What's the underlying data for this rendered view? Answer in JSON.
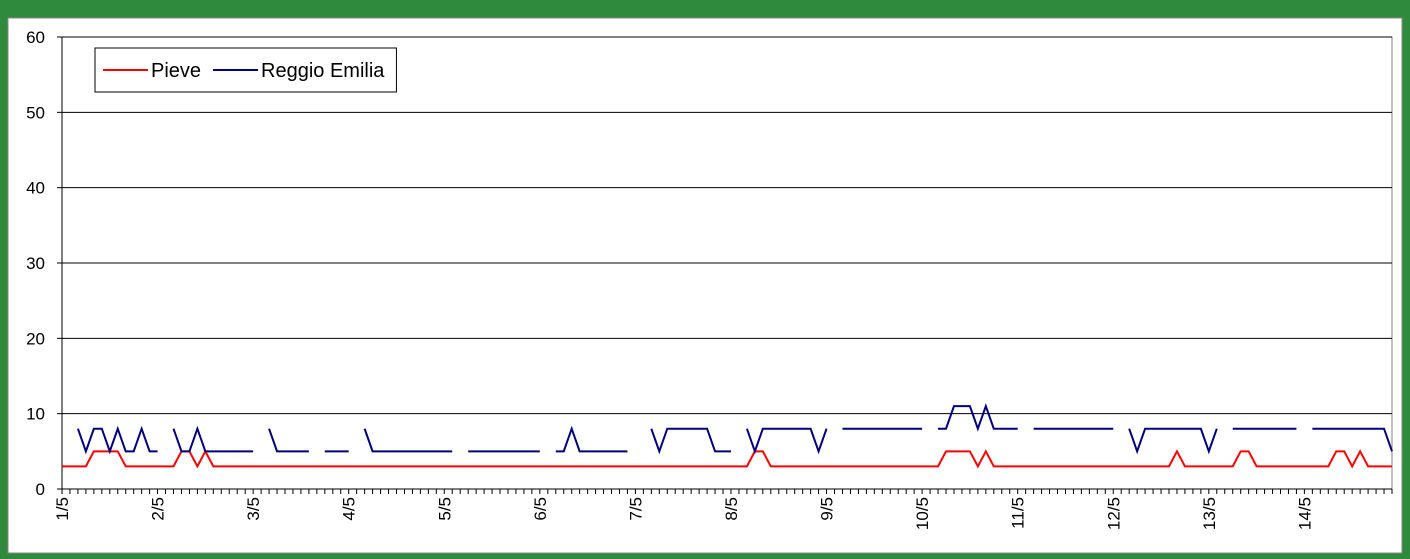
{
  "chart_data": {
    "type": "line",
    "categories": [
      "1/5",
      null,
      null,
      null,
      null,
      null,
      null,
      null,
      null,
      null,
      null,
      null,
      "2/5",
      null,
      null,
      null,
      null,
      null,
      null,
      null,
      null,
      null,
      null,
      null,
      "3/5",
      null,
      null,
      null,
      null,
      null,
      null,
      null,
      null,
      null,
      null,
      null,
      "4/5",
      null,
      null,
      null,
      null,
      null,
      null,
      null,
      null,
      null,
      null,
      null,
      "5/5",
      null,
      null,
      null,
      null,
      null,
      null,
      null,
      null,
      null,
      null,
      null,
      "6/5",
      null,
      null,
      null,
      null,
      null,
      null,
      null,
      null,
      null,
      null,
      null,
      "7/5",
      null,
      null,
      null,
      null,
      null,
      null,
      null,
      null,
      null,
      null,
      null,
      "8/5",
      null,
      null,
      null,
      null,
      null,
      null,
      null,
      null,
      null,
      null,
      null,
      "9/5",
      null,
      null,
      null,
      null,
      null,
      null,
      null,
      null,
      null,
      null,
      null,
      "10/5",
      null,
      null,
      null,
      null,
      null,
      null,
      null,
      null,
      null,
      null,
      null,
      "11/5",
      null,
      null,
      null,
      null,
      null,
      null,
      null,
      null,
      null,
      null,
      null,
      "12/5",
      null,
      null,
      null,
      null,
      null,
      null,
      null,
      null,
      null,
      null,
      null,
      "13/5",
      null,
      null,
      null,
      null,
      null,
      null,
      null,
      null,
      null,
      null,
      null,
      "14/5",
      null,
      null,
      null,
      null,
      null,
      null,
      null,
      null,
      null,
      null,
      null
    ],
    "series": [
      {
        "name": "Pieve",
        "color": "#ff0000",
        "values": [
          3,
          3,
          3,
          3,
          5,
          5,
          5,
          5,
          3,
          3,
          3,
          3,
          3,
          3,
          3,
          5,
          5,
          3,
          5,
          3,
          3,
          3,
          3,
          3,
          3,
          3,
          3,
          3,
          3,
          3,
          3,
          3,
          3,
          3,
          3,
          3,
          3,
          3,
          3,
          3,
          3,
          3,
          3,
          3,
          3,
          3,
          3,
          3,
          3,
          3,
          3,
          3,
          3,
          3,
          3,
          3,
          3,
          3,
          3,
          3,
          3,
          3,
          3,
          3,
          3,
          3,
          3,
          3,
          3,
          3,
          3,
          3,
          3,
          3,
          3,
          3,
          3,
          3,
          3,
          3,
          3,
          3,
          3,
          3,
          3,
          3,
          3,
          5,
          5,
          3,
          3,
          3,
          3,
          3,
          3,
          3,
          3,
          3,
          3,
          3,
          3,
          3,
          3,
          3,
          3,
          3,
          3,
          3,
          3,
          3,
          3,
          5,
          5,
          5,
          5,
          3,
          5,
          3,
          3,
          3,
          3,
          3,
          3,
          3,
          3,
          3,
          3,
          3,
          3,
          3,
          3,
          3,
          3,
          3,
          3,
          3,
          3,
          3,
          3,
          3,
          5,
          3,
          3,
          3,
          3,
          3,
          3,
          3,
          5,
          5,
          3,
          3,
          3,
          3,
          3,
          3,
          3,
          3,
          3,
          3,
          5,
          5,
          3,
          5,
          3,
          3,
          3,
          3
        ]
      },
      {
        "name": "Reggio Emilia",
        "color": "#000080",
        "values": [
          null,
          null,
          8,
          5,
          8,
          8,
          5,
          8,
          5,
          5,
          8,
          5,
          5,
          null,
          8,
          5,
          5,
          8,
          5,
          5,
          5,
          5,
          5,
          5,
          5,
          null,
          8,
          5,
          5,
          5,
          5,
          5,
          null,
          5,
          5,
          5,
          5,
          null,
          8,
          5,
          5,
          5,
          5,
          5,
          5,
          5,
          5,
          5,
          5,
          5,
          null,
          5,
          5,
          5,
          5,
          5,
          5,
          5,
          5,
          5,
          5,
          null,
          5,
          5,
          8,
          5,
          5,
          5,
          5,
          5,
          5,
          5,
          null,
          null,
          8,
          5,
          8,
          8,
          8,
          8,
          8,
          8,
          5,
          5,
          5,
          null,
          8,
          5,
          8,
          8,
          8,
          8,
          8,
          8,
          8,
          5,
          8,
          null,
          8,
          8,
          8,
          8,
          8,
          8,
          8,
          8,
          8,
          8,
          8,
          null,
          8,
          8,
          11,
          11,
          11,
          8,
          11,
          8,
          8,
          8,
          8,
          null,
          8,
          8,
          8,
          8,
          8,
          8,
          8,
          8,
          8,
          8,
          8,
          null,
          8,
          5,
          8,
          8,
          8,
          8,
          8,
          8,
          8,
          8,
          5,
          8,
          null,
          8,
          8,
          8,
          8,
          8,
          8,
          8,
          8,
          8,
          null,
          8,
          8,
          8,
          8,
          8,
          8,
          8,
          8,
          8,
          8,
          5
        ]
      }
    ],
    "ylim": [
      0,
      60
    ],
    "yticks": [
      0,
      10,
      20,
      30,
      40,
      50,
      60
    ],
    "grid": true,
    "legend": "upper left"
  }
}
